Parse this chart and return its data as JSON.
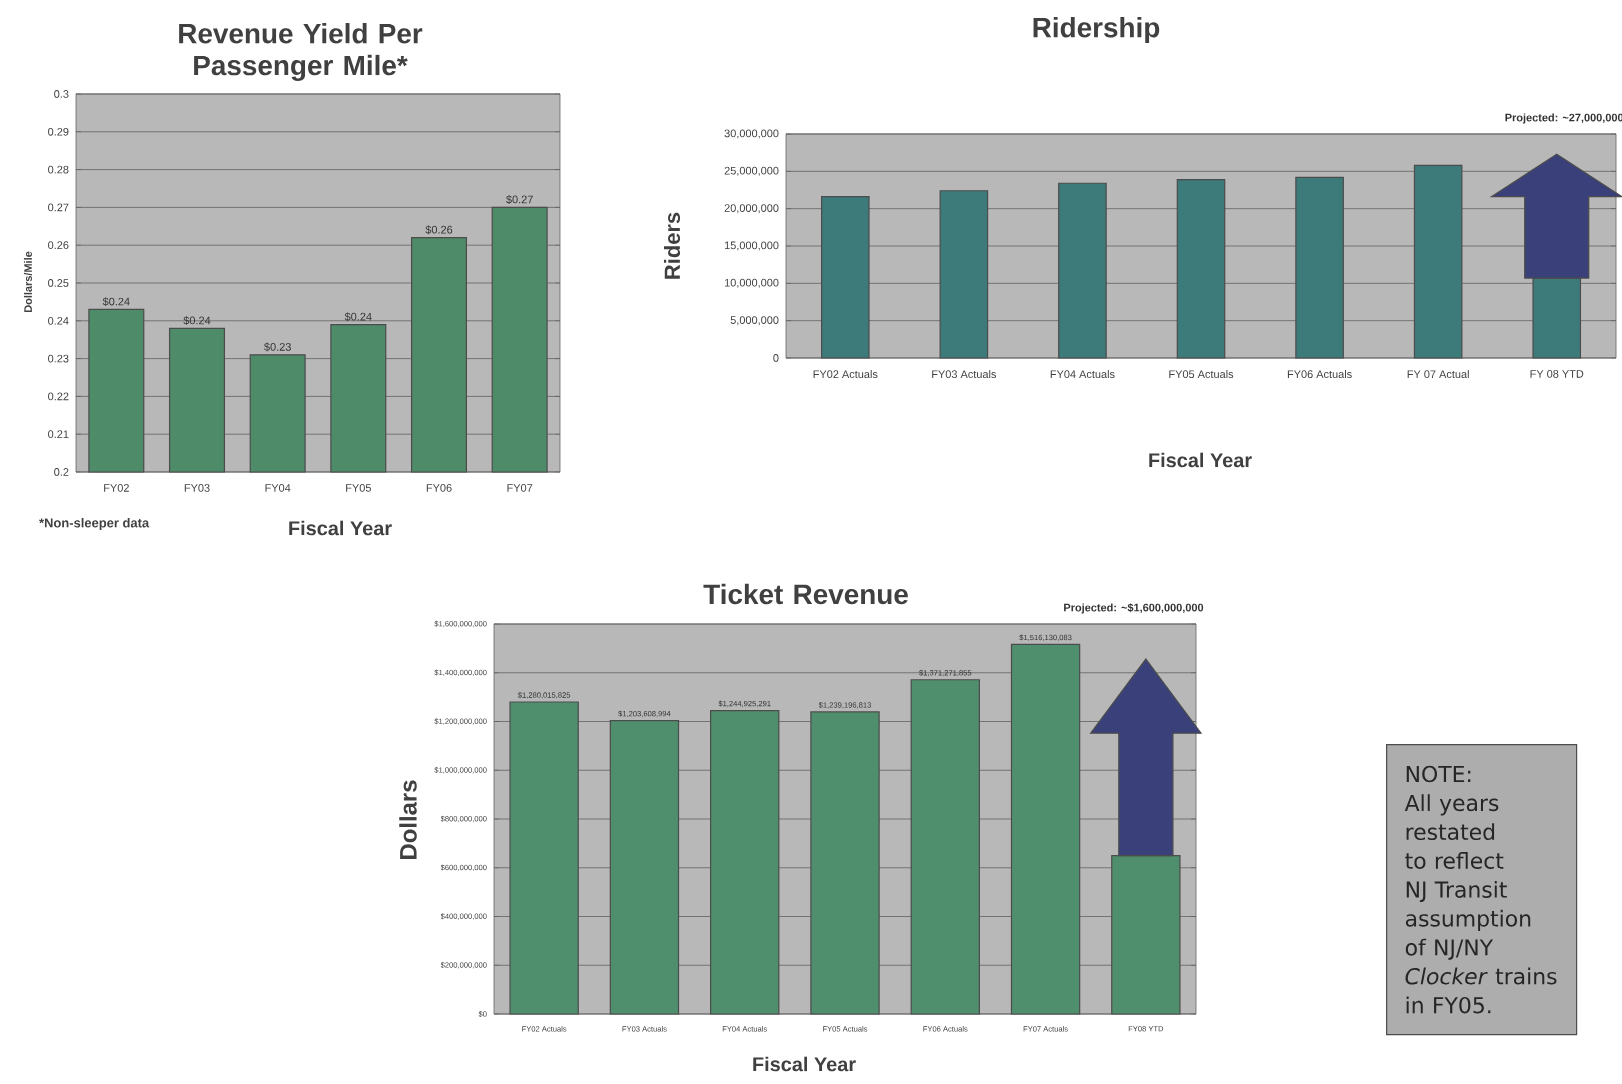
{
  "chart_data": [
    {
      "type": "bar",
      "title": "Revenue Yield Per Passenger Mile*",
      "xlabel": "Fiscal Year",
      "ylabel": "Dollars/Mile",
      "categories": [
        "FY02",
        "FY03",
        "FY04",
        "FY05",
        "FY06",
        "FY07"
      ],
      "values": [
        0.243,
        0.238,
        0.231,
        0.239,
        0.262,
        0.27
      ],
      "value_labels": [
        "$0.24",
        "$0.24",
        "$0.23",
        "$0.24",
        "$0.26",
        "$0.27"
      ],
      "color": "#4e8b68",
      "ylim": [
        0.2,
        0.3
      ],
      "yticks": [
        0.2,
        0.21,
        0.22,
        0.23,
        0.24,
        0.25,
        0.26,
        0.27,
        0.28,
        0.29,
        0.3
      ],
      "grid": "y",
      "annotations": [
        "*Non-sleeper data"
      ]
    },
    {
      "type": "bar",
      "title": "Ridership",
      "xlabel": "Fiscal Year",
      "ylabel": "Riders",
      "categories": [
        "FY02 Actuals",
        "FY03 Actuals",
        "FY04 Actuals",
        "FY05 Actuals",
        "FY06 Actuals",
        "FY 07 Actual",
        "FY 08 YTD"
      ],
      "values": [
        21600000,
        22400000,
        23400000,
        23900000,
        24200000,
        25800000,
        10700000
      ],
      "color": "#3d7a7a",
      "ylim": [
        0,
        30000000
      ],
      "yticks": [
        {
          "value": 0,
          "label": "0"
        },
        {
          "value": 5000000,
          "label": "5,000,000"
        },
        {
          "value": 10000000,
          "label": "10,000,000"
        },
        {
          "value": 15000000,
          "label": "15,000,000"
        },
        {
          "value": 20000000,
          "label": "20,000,000"
        },
        {
          "value": 25000000,
          "label": "25,000,000"
        },
        {
          "value": 30000000,
          "label": "30,000,000"
        }
      ],
      "grid": "y",
      "annotations": [
        "Projected: ~27,000,000"
      ]
    },
    {
      "type": "bar",
      "title": "Ticket Revenue",
      "xlabel": "Fiscal Year",
      "ylabel": "Dollars",
      "categories": [
        "FY02 Actuals",
        "FY03 Actuals",
        "FY04 Actuals",
        "FY05 Actuals",
        "FY06 Actuals",
        "FY07 Actuals",
        "FY08 YTD"
      ],
      "values": [
        1280015825,
        1203608994,
        1244925291,
        1239196813,
        1371271855,
        1516130083,
        650000000
      ],
      "value_labels": [
        "$1,280,015,825",
        "$1,203,608,994",
        "$1,244,925,291",
        "$1,239,196,813",
        "$1,371,271,855",
        "$1,516,130,083",
        null
      ],
      "color": "#4f8f6e",
      "ylim": [
        0,
        1600000000
      ],
      "yticks": [
        {
          "value": 0,
          "label": "$0"
        },
        {
          "value": 200000000,
          "label": "$200,000,000"
        },
        {
          "value": 400000000,
          "label": "$400,000,000"
        },
        {
          "value": 600000000,
          "label": "$600,000,000"
        },
        {
          "value": 800000000,
          "label": "$800,000,000"
        },
        {
          "value": 1000000000,
          "label": "$1,000,000,000"
        },
        {
          "value": 1200000000,
          "label": "$1,200,000,000"
        },
        {
          "value": 1400000000,
          "label": "$1,400,000,000"
        },
        {
          "value": 1600000000,
          "label": "$1,600,000,000"
        }
      ],
      "grid": "y",
      "annotations": [
        "Projected: ~$1,600,000,000"
      ]
    },
    {
      "type": "other",
      "annotations": [
        "NOTE: All years restated to reflect NJ Transit assumption of NJ/NY *Clocker* trains in FY05."
      ]
    }
  ]
}
